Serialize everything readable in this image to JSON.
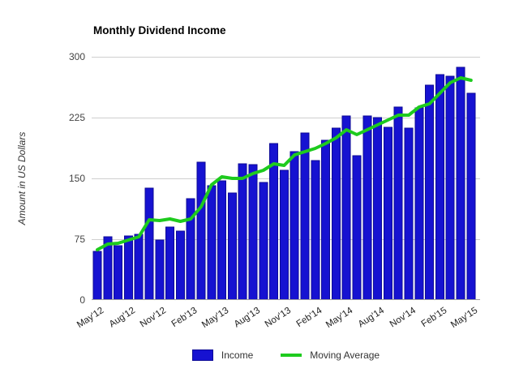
{
  "title": "Monthly Dividend Income",
  "colors": {
    "bar_fill": "#1612d1",
    "bar_stroke": "#0d0a96",
    "line": "#1ecb1e",
    "gridline": "#cfcfcf",
    "baseline": "#9e9e9e",
    "title_text": "#000000",
    "tick_text": "#444444"
  },
  "chart_data": {
    "type": "bar",
    "title": "Monthly Dividend Income",
    "xlabel": "",
    "ylabel": "Amount in US Dollars",
    "ylim": [
      0,
      300
    ],
    "y_ticks": [
      0,
      75,
      150,
      225,
      300
    ],
    "grid": true,
    "legend_position": "bottom",
    "x_tick_every": 3,
    "categories": [
      "May'12",
      "Jun'12",
      "Jul'12",
      "Aug'12",
      "Sep'12",
      "Oct'12",
      "Nov'12",
      "Dec'12",
      "Jan'13",
      "Feb'13",
      "Mar'13",
      "Apr'13",
      "May'13",
      "Jun'13",
      "Jul'13",
      "Aug'13",
      "Sep'13",
      "Oct'13",
      "Nov'13",
      "Dec'13",
      "Jan'14",
      "Feb'14",
      "Mar'14",
      "Apr'14",
      "May'14",
      "Jun'14",
      "Jul'14",
      "Aug'14",
      "Sep'14",
      "Oct'14",
      "Nov'14",
      "Dec'14",
      "Jan'15",
      "Feb'15",
      "Mar'15",
      "Apr'15",
      "May'15"
    ],
    "x_tick_labels": [
      "May'12",
      "Aug'12",
      "Nov'12",
      "Feb'13",
      "May'13",
      "Aug'13",
      "Nov'13",
      "Feb'14",
      "May'14",
      "Aug'14",
      "Nov'14",
      "Feb'15",
      "May'15"
    ],
    "series": [
      {
        "name": "Income",
        "type": "bar",
        "color": "#1612d1",
        "values": [
          60,
          78,
          67,
          79,
          81,
          138,
          74,
          90,
          85,
          125,
          170,
          141,
          147,
          132,
          168,
          167,
          145,
          193,
          160,
          183,
          206,
          172,
          197,
          212,
          227,
          178,
          227,
          225,
          213,
          238,
          212,
          237,
          265,
          278,
          276,
          287,
          255
        ]
      },
      {
        "name": "Moving Average",
        "type": "line",
        "color": "#1ecb1e",
        "values": [
          62,
          69,
          70,
          74,
          78,
          99,
          98,
          100,
          97,
          100,
          115,
          142,
          152,
          150,
          150,
          156,
          160,
          168,
          166,
          179,
          183,
          187,
          193,
          200,
          210,
          204,
          210,
          216,
          222,
          228,
          228,
          238,
          242,
          255,
          268,
          274,
          271
        ]
      }
    ]
  }
}
